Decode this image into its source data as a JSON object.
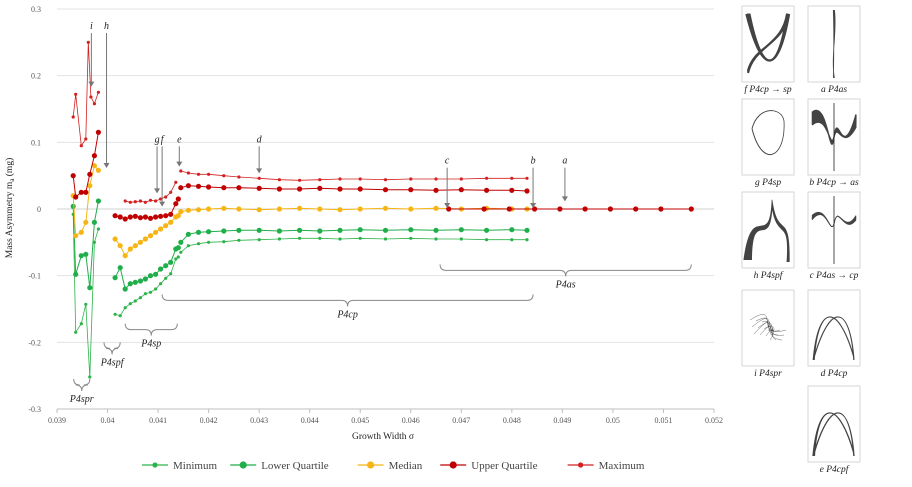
{
  "chart_data": {
    "type": "scatter",
    "xlabel": "Growth Width σ",
    "ylabel": "Mass Asymmetry m_a (mg)",
    "xlim": [
      0.039,
      0.052
    ],
    "ylim": [
      -0.3,
      0.3
    ],
    "xticks": [
      "0.039",
      "0.04",
      "0.041",
      "0.042",
      "0.043",
      "0.044",
      "0.045",
      "0.046",
      "0.047",
      "0.048",
      "0.049",
      "0.05",
      "0.051",
      "0.052"
    ],
    "yticks": [
      "0.3",
      "0.2",
      "0.1",
      "0",
      "-0.1",
      "-0.2",
      "-0.3"
    ],
    "grid": "horizontal",
    "legend_position": "bottom",
    "series": [
      {
        "name": "Minimum",
        "color": "#2db34a",
        "markerSize": 1.6,
        "lineWidth": 0.8,
        "segments": [
          [
            [
              0.03932,
              -0.008
            ],
            [
              0.03937,
              -0.185
            ],
            [
              0.03948,
              -0.172
            ],
            [
              0.03957,
              -0.143
            ],
            [
              0.03965,
              -0.252
            ],
            [
              0.03974,
              -0.05
            ],
            [
              0.03982,
              -0.03
            ]
          ],
          [
            [
              0.04015,
              -0.158
            ],
            [
              0.04025,
              -0.16
            ],
            [
              0.04035,
              -0.148
            ],
            [
              0.04045,
              -0.142
            ],
            [
              0.04055,
              -0.138
            ],
            [
              0.04065,
              -0.133
            ],
            [
              0.04075,
              -0.127
            ],
            [
              0.04085,
              -0.125
            ],
            [
              0.04095,
              -0.12
            ],
            [
              0.04105,
              -0.112
            ],
            [
              0.04115,
              -0.104
            ],
            [
              0.04125,
              -0.097
            ],
            [
              0.04135,
              -0.075
            ],
            [
              0.0414,
              -0.072
            ]
          ],
          [
            [
              0.04145,
              -0.065
            ],
            [
              0.0416,
              -0.055
            ],
            [
              0.0418,
              -0.052
            ],
            [
              0.042,
              -0.05
            ],
            [
              0.0423,
              -0.049
            ],
            [
              0.0426,
              -0.047
            ],
            [
              0.043,
              -0.046
            ],
            [
              0.0434,
              -0.045
            ],
            [
              0.0438,
              -0.044
            ],
            [
              0.0442,
              -0.044
            ],
            [
              0.0446,
              -0.045
            ],
            [
              0.045,
              -0.044
            ],
            [
              0.0455,
              -0.045
            ],
            [
              0.046,
              -0.044
            ],
            [
              0.0465,
              -0.045
            ],
            [
              0.047,
              -0.045
            ],
            [
              0.0475,
              -0.046
            ],
            [
              0.048,
              -0.046
            ],
            [
              0.0483,
              -0.046
            ]
          ]
        ]
      },
      {
        "name": "Lower Quartile",
        "color": "#1fae4a",
        "markerSize": 2.6,
        "lineWidth": 1,
        "segments": [
          [
            [
              0.03932,
              0.004
            ],
            [
              0.03937,
              -0.098
            ],
            [
              0.03948,
              -0.07
            ],
            [
              0.03957,
              -0.068
            ],
            [
              0.03965,
              -0.118
            ],
            [
              0.03974,
              -0.02
            ],
            [
              0.03982,
              0.012
            ]
          ],
          [
            [
              0.04015,
              -0.103
            ],
            [
              0.04025,
              -0.088
            ],
            [
              0.04035,
              -0.12
            ],
            [
              0.04045,
              -0.112
            ],
            [
              0.04055,
              -0.11
            ],
            [
              0.04065,
              -0.108
            ],
            [
              0.04075,
              -0.105
            ],
            [
              0.04085,
              -0.1
            ],
            [
              0.04095,
              -0.098
            ],
            [
              0.04105,
              -0.09
            ],
            [
              0.04115,
              -0.085
            ],
            [
              0.04125,
              -0.08
            ],
            [
              0.04135,
              -0.06
            ],
            [
              0.0414,
              -0.058
            ]
          ],
          [
            [
              0.04145,
              -0.05
            ],
            [
              0.0416,
              -0.038
            ],
            [
              0.0418,
              -0.035
            ],
            [
              0.042,
              -0.034
            ],
            [
              0.0423,
              -0.033
            ],
            [
              0.0426,
              -0.032
            ],
            [
              0.043,
              -0.032
            ],
            [
              0.0434,
              -0.033
            ],
            [
              0.0438,
              -0.032
            ],
            [
              0.0442,
              -0.033
            ],
            [
              0.0446,
              -0.032
            ],
            [
              0.045,
              -0.031
            ],
            [
              0.0455,
              -0.032
            ],
            [
              0.046,
              -0.031
            ],
            [
              0.0465,
              -0.032
            ],
            [
              0.047,
              -0.031
            ],
            [
              0.0475,
              -0.032
            ],
            [
              0.048,
              -0.031
            ],
            [
              0.0483,
              -0.032
            ]
          ]
        ]
      },
      {
        "name": "Median",
        "color": "#f7b515",
        "markerSize": 2.6,
        "lineWidth": 1,
        "segments": [
          [
            [
              0.03932,
              0.02
            ],
            [
              0.03937,
              -0.04
            ],
            [
              0.03948,
              -0.035
            ],
            [
              0.03957,
              -0.02
            ],
            [
              0.03965,
              0.035
            ],
            [
              0.03974,
              0.065
            ],
            [
              0.03982,
              0.058
            ]
          ],
          [
            [
              0.04015,
              -0.045
            ],
            [
              0.04025,
              -0.055
            ],
            [
              0.04035,
              -0.07
            ],
            [
              0.04045,
              -0.06
            ],
            [
              0.04055,
              -0.055
            ],
            [
              0.04065,
              -0.05
            ],
            [
              0.04075,
              -0.045
            ],
            [
              0.04085,
              -0.04
            ],
            [
              0.04095,
              -0.035
            ],
            [
              0.04105,
              -0.03
            ],
            [
              0.04115,
              -0.025
            ],
            [
              0.04125,
              -0.02
            ],
            [
              0.04135,
              -0.012
            ],
            [
              0.0414,
              -0.01
            ]
          ],
          [
            [
              0.04145,
              -0.004
            ],
            [
              0.0416,
              -0.002
            ],
            [
              0.0418,
              -0.001
            ],
            [
              0.042,
              0.0
            ],
            [
              0.0423,
              0.001
            ],
            [
              0.0426,
              0.0
            ],
            [
              0.043,
              -0.001
            ],
            [
              0.0434,
              0.0
            ],
            [
              0.0438,
              0.001
            ],
            [
              0.0442,
              0.0
            ],
            [
              0.0446,
              -0.001
            ],
            [
              0.045,
              0.0
            ],
            [
              0.0455,
              0.001
            ],
            [
              0.046,
              0.0
            ],
            [
              0.0465,
              0.001
            ],
            [
              0.047,
              0.0
            ],
            [
              0.0475,
              0.001
            ],
            [
              0.048,
              0.0
            ],
            [
              0.0483,
              0.0
            ]
          ]
        ]
      },
      {
        "name": "Upper Quartile",
        "color": "#c00000",
        "markerSize": 2.6,
        "lineWidth": 1,
        "segments": [
          [
            [
              0.03932,
              0.05
            ],
            [
              0.03937,
              0.018
            ],
            [
              0.03948,
              0.025
            ],
            [
              0.03957,
              0.025
            ],
            [
              0.03965,
              0.052
            ],
            [
              0.03974,
              0.08
            ],
            [
              0.03982,
              0.115
            ]
          ],
          [
            [
              0.04015,
              -0.01
            ],
            [
              0.04025,
              -0.012
            ],
            [
              0.04035,
              -0.015
            ],
            [
              0.04045,
              -0.012
            ],
            [
              0.04055,
              -0.011
            ],
            [
              0.04065,
              -0.013
            ],
            [
              0.04075,
              -0.012
            ],
            [
              0.04085,
              -0.014
            ],
            [
              0.04095,
              -0.012
            ],
            [
              0.04105,
              -0.011
            ],
            [
              0.04115,
              -0.01
            ],
            [
              0.04125,
              -0.008
            ],
            [
              0.04135,
              0.008
            ],
            [
              0.0414,
              0.015
            ]
          ],
          [
            [
              0.04145,
              0.032
            ],
            [
              0.0416,
              0.035
            ],
            [
              0.0418,
              0.034
            ],
            [
              0.042,
              0.033
            ],
            [
              0.0423,
              0.032
            ],
            [
              0.0426,
              0.032
            ],
            [
              0.043,
              0.031
            ],
            [
              0.0434,
              0.03
            ],
            [
              0.0438,
              0.03
            ],
            [
              0.0442,
              0.031
            ],
            [
              0.0446,
              0.03
            ],
            [
              0.045,
              0.03
            ],
            [
              0.0455,
              0.029
            ],
            [
              0.046,
              0.029
            ],
            [
              0.0465,
              0.028
            ],
            [
              0.047,
              0.029
            ],
            [
              0.0475,
              0.028
            ],
            [
              0.048,
              0.028
            ],
            [
              0.0483,
              0.027
            ]
          ],
          [
            [
              0.04675,
              0.0
            ],
            [
              0.04745,
              0.0
            ],
            [
              0.04795,
              0.0
            ],
            [
              0.04845,
              0.0
            ],
            [
              0.04895,
              0.0
            ],
            [
              0.04945,
              0.0
            ],
            [
              0.04995,
              0.0
            ],
            [
              0.05045,
              0.0
            ],
            [
              0.05095,
              0.0
            ],
            [
              0.05155,
              0.0
            ]
          ]
        ]
      },
      {
        "name": "Maximum",
        "color": "#d42020",
        "markerSize": 1.6,
        "lineWidth": 0.8,
        "segments": [
          [
            [
              0.03932,
              0.138
            ],
            [
              0.03937,
              0.172
            ],
            [
              0.03948,
              0.095
            ],
            [
              0.03957,
              0.105
            ],
            [
              0.03962,
              0.25
            ],
            [
              0.03967,
              0.168
            ],
            [
              0.03974,
              0.158
            ],
            [
              0.03982,
              0.175
            ]
          ],
          [
            [
              0.04035,
              0.012
            ],
            [
              0.04045,
              0.01
            ],
            [
              0.04055,
              0.011
            ],
            [
              0.04065,
              0.012
            ],
            [
              0.04075,
              0.01
            ],
            [
              0.04085,
              0.013
            ],
            [
              0.04095,
              0.012
            ],
            [
              0.04105,
              0.015
            ],
            [
              0.04115,
              0.018
            ],
            [
              0.04125,
              0.025
            ],
            [
              0.04135,
              0.04
            ]
          ],
          [
            [
              0.04145,
              0.057
            ],
            [
              0.0416,
              0.054
            ],
            [
              0.0418,
              0.052
            ],
            [
              0.042,
              0.052
            ],
            [
              0.0423,
              0.05
            ],
            [
              0.0426,
              0.048
            ],
            [
              0.043,
              0.046
            ],
            [
              0.0434,
              0.044
            ],
            [
              0.0438,
              0.043
            ],
            [
              0.0442,
              0.044
            ],
            [
              0.0446,
              0.045
            ],
            [
              0.045,
              0.045
            ],
            [
              0.0455,
              0.044
            ],
            [
              0.046,
              0.045
            ],
            [
              0.0465,
              0.045
            ],
            [
              0.047,
              0.045
            ],
            [
              0.0475,
              0.046
            ],
            [
              0.048,
              0.046
            ],
            [
              0.0483,
              0.046
            ]
          ]
        ]
      }
    ],
    "annotations": [
      {
        "label": "i",
        "x": 0.03968,
        "y_text": 0.27,
        "y_arrow": 0.182
      },
      {
        "label": "h",
        "x": 0.03998,
        "y_text": 0.27,
        "y_arrow": 0.06
      },
      {
        "label": "g",
        "x": 0.04098,
        "y_text": 0.1,
        "y_arrow": 0.022
      },
      {
        "label": "f",
        "x": 0.04108,
        "y_text": 0.1,
        "y_arrow": 0.002
      },
      {
        "label": "e",
        "x": 0.04142,
        "y_text": 0.1,
        "y_arrow": 0.062
      },
      {
        "label": "d",
        "x": 0.043,
        "y_text": 0.1,
        "y_arrow": 0.052
      },
      {
        "label": "c",
        "x": 0.04672,
        "y_text": 0.068,
        "y_arrow": 0.0
      },
      {
        "label": "b",
        "x": 0.04842,
        "y_text": 0.068,
        "y_arrow": 0.0
      },
      {
        "label": "a",
        "x": 0.04905,
        "y_text": 0.068,
        "y_arrow": 0.01
      }
    ],
    "brackets": [
      {
        "label": "P4spr",
        "x1": 0.03933,
        "x2": 0.03965,
        "y": -0.255,
        "dir": "down"
      },
      {
        "label": "P4spf",
        "x1": 0.03993,
        "x2": 0.04025,
        "y": -0.2,
        "dir": "down"
      },
      {
        "label": "P4sp",
        "x1": 0.04035,
        "x2": 0.04138,
        "y": -0.172,
        "dir": "down"
      },
      {
        "label": "P4cp",
        "x1": 0.04108,
        "x2": 0.04842,
        "y": -0.128,
        "dir": "down"
      },
      {
        "label": "P4as",
        "x1": 0.04658,
        "x2": 0.05155,
        "y": -0.083,
        "dir": "down"
      }
    ]
  },
  "thumbnails": [
    {
      "caption": "f P4cp → sp"
    },
    {
      "caption": "a P4as"
    },
    {
      "caption": "g P4sp"
    },
    {
      "caption": "b P4cp → as"
    },
    {
      "caption": "h P4spf"
    },
    {
      "caption": "c P4as → cp"
    },
    {
      "caption": "i P4spr"
    },
    {
      "caption": "d P4cp"
    },
    {
      "caption": "e P4cpf"
    }
  ]
}
